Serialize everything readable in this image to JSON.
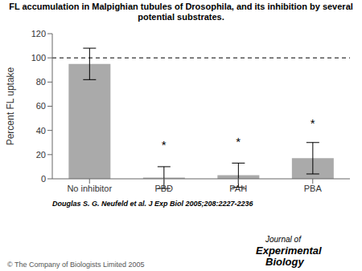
{
  "chart_data": {
    "type": "bar",
    "title": "FL accumulation in Malpighian tubules of Drosophila, and its inhibition by several potential substrates.",
    "y_label": "Percent FL uptake",
    "categories": [
      "No inhibitor",
      "PBD",
      "PAH",
      "PBA"
    ],
    "values": [
      95,
      1,
      3,
      17
    ],
    "errors": [
      13,
      9,
      10,
      13
    ],
    "color": "#aaaaaa",
    "ylim": [
      0,
      120
    ],
    "yticks": [
      0,
      20,
      40,
      60,
      80,
      100,
      120
    ],
    "annotations": [
      {
        "y": 100,
        "line_style": "dashed"
      },
      {
        "text": "*",
        "x": "PBD",
        "y": 21
      },
      {
        "text": "*",
        "x": "PAH",
        "y": 24
      },
      {
        "text": "*",
        "x": "PBA",
        "y": 39
      },
      "Douglas S. G. Neufeld et al. J Exp Biol 2005;208:2227-2236",
      "© The Company of Biologists Limited 2005",
      "Journal of",
      "Experimental",
      "Biology"
    ]
  }
}
